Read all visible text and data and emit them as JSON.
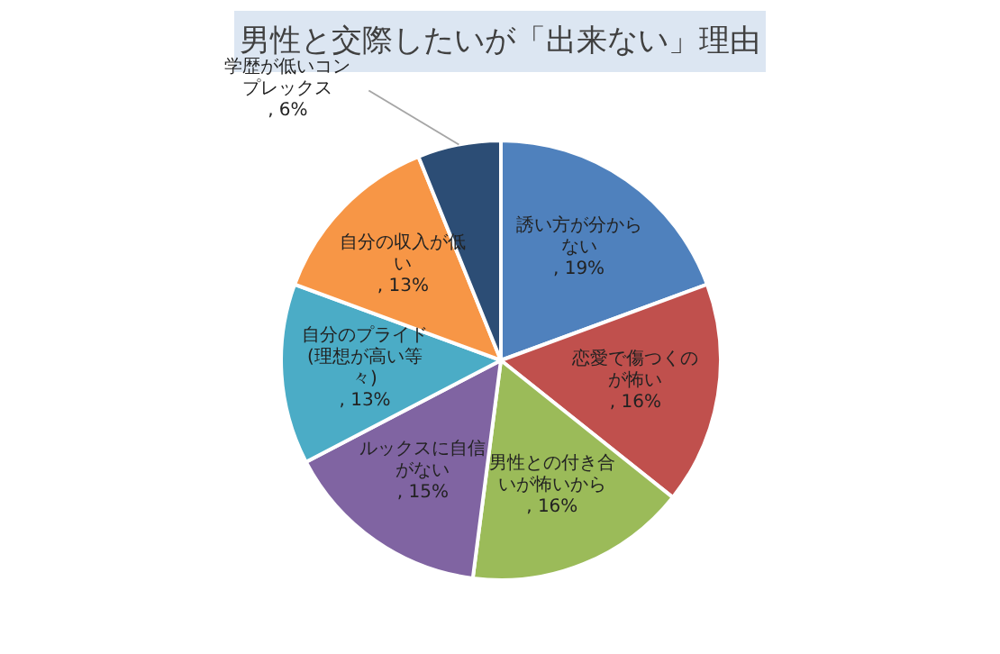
{
  "chart_data": {
    "type": "pie",
    "title": "男性と交際したいが「出来ない」理由",
    "categories": [
      "誘い方が分からない",
      "恋愛で傷つくのが怖い",
      "男性との付き合いが怖いから",
      "ルックスに自信がない",
      "自分のプライド(理想が高い等々)",
      "自分の収入が低い",
      "学歴が低いコンプレックス"
    ],
    "values": [
      19,
      16,
      16,
      15,
      13,
      13,
      6
    ],
    "value_labels": [
      ", 19%",
      ", 16%",
      ", 16%",
      ", 15%",
      ", 13%",
      ", 13%",
      ", 6%"
    ],
    "colors": [
      "#4f81bd",
      "#c0504d",
      "#9bbb59",
      "#8064a2",
      "#4bacc6",
      "#f79646",
      "#2c4d75"
    ]
  }
}
